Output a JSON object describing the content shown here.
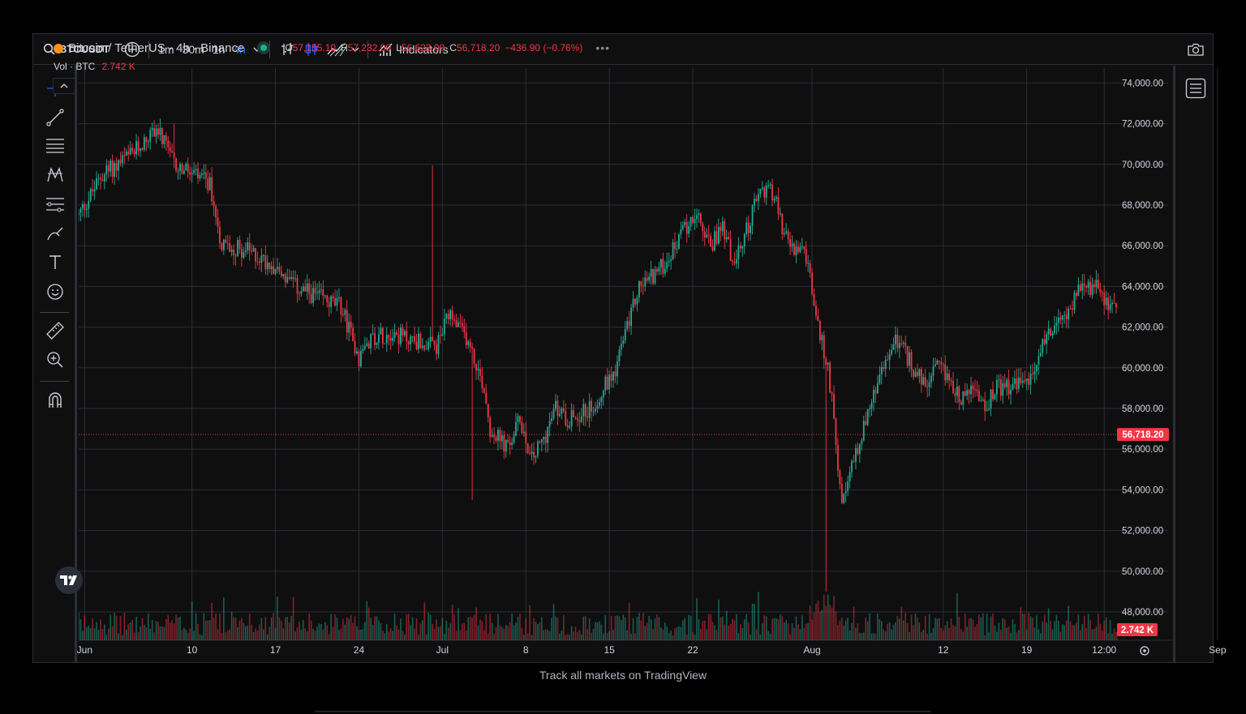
{
  "toolbar": {
    "symbol": "BTCUSDT",
    "timeframes": [
      "1m",
      "30m",
      "1h",
      "4h"
    ],
    "active_timeframe": "4h",
    "indicators_label": "Indicators"
  },
  "legend": {
    "title": "Bitcoin / TetherUS · 4h · Binance",
    "open_label": "O",
    "open": "57,155.10",
    "high_label": "H",
    "high": "57,232.00",
    "low_label": "L",
    "low": "56,623.00",
    "close_label": "C",
    "close": "56,718.20",
    "change": "−436.90 (−0.76%)",
    "vol_label": "Vol · BTC",
    "vol_value": "2.742 K"
  },
  "footer": {
    "text": "Track all markets on TradingView"
  },
  "colors": {
    "up": "#22ab94",
    "down": "#f23645",
    "accent": "#2962ff",
    "grid": "#2a2e39",
    "axis_text": "#d1d4dc",
    "background": "#0f0f0f"
  },
  "icons": {
    "left_toolbar": [
      "crosshair-icon",
      "trend-line-icon",
      "fib-retracement-icon",
      "pattern-icon",
      "forecast-icon",
      "brush-icon",
      "text-icon",
      "emoji-icon",
      "ruler-icon",
      "zoom-in-icon",
      "magnet-icon"
    ],
    "right_toolbar": [
      "watchlist-icon"
    ]
  },
  "chart_data": {
    "type": "candlestick",
    "title": "Bitcoin / TetherUS · 4h · Binance",
    "ylim": [
      46000,
      74800
    ],
    "y_ticks": [
      "74,000.00",
      "72,000.00",
      "70,000.00",
      "68,000.00",
      "66,000.00",
      "64,000.00",
      "62,000.00",
      "60,000.00",
      "58,000.00",
      "56,000.00",
      "54,000.00",
      "52,000.00",
      "50,000.00",
      "48,000.00"
    ],
    "y_tick_values": [
      74000,
      72000,
      70000,
      68000,
      66000,
      64000,
      62000,
      60000,
      58000,
      56000,
      54000,
      52000,
      50000,
      48000
    ],
    "x_ticks": [
      "Jun",
      "10",
      "17",
      "24",
      "Jul",
      "8",
      "15",
      "22",
      "Aug",
      "12",
      "19",
      "12:00",
      "Sep"
    ],
    "x_tick_days": [
      0.5,
      9.5,
      16.5,
      23.5,
      30.5,
      37.5,
      44.5,
      51.5,
      61.5,
      72.5,
      79.5,
      86,
      95.5
    ],
    "last_price": 56718.2,
    "last_price_label": "56,718.20",
    "volume_label": "2.742 K",
    "series_keypoints": {
      "day": [
        0,
        2,
        4.5,
        6.5,
        8,
        9.5,
        11,
        12,
        14,
        16.5,
        18,
        20,
        22,
        23.5,
        24.5,
        26,
        28.5,
        30,
        31,
        32.5,
        34,
        34.5,
        36,
        37,
        38,
        39,
        40,
        41,
        43,
        45,
        47,
        49,
        51,
        51.6,
        53,
        54,
        55,
        57,
        58,
        59.5,
        61,
        62,
        62.8,
        63.3,
        64,
        65,
        66.2,
        67.5,
        68.5,
        70,
        71,
        72,
        73,
        74,
        75,
        76,
        77,
        78,
        80,
        81,
        82,
        84,
        85.5,
        86,
        87,
        88,
        89,
        90,
        91,
        93,
        94,
        95,
        96,
        97,
        97.3,
        98,
        98.5
      ],
      "price": [
        67500,
        69500,
        70500,
        71800,
        70000,
        69500,
        69000,
        66000,
        65800,
        65000,
        64000,
        63500,
        63000,
        60500,
        61500,
        61700,
        61300,
        61000,
        62500,
        61500,
        59000,
        57000,
        56000,
        57500,
        55500,
        56500,
        58000,
        57500,
        58000,
        60000,
        64000,
        65000,
        67000,
        67600,
        66000,
        67000,
        65000,
        68500,
        69000,
        66000,
        65500,
        62000,
        60000,
        58000,
        53000,
        55500,
        57800,
        60000,
        61500,
        60000,
        59000,
        60000,
        59500,
        58500,
        59000,
        58000,
        59000,
        59000,
        59500,
        61500,
        62000,
        63800,
        64000,
        63500,
        62800,
        62500,
        61000,
        58000,
        60000,
        58500,
        58000,
        57300,
        57500,
        58000,
        56500,
        57500,
        56718
      ]
    },
    "extremes": [
      {
        "day": 8,
        "price": 72000
      },
      {
        "day": 29.7,
        "price": 69950
      },
      {
        "day": 33,
        "price": 53500
      },
      {
        "day": 62.6,
        "price": 49000
      }
    ]
  }
}
